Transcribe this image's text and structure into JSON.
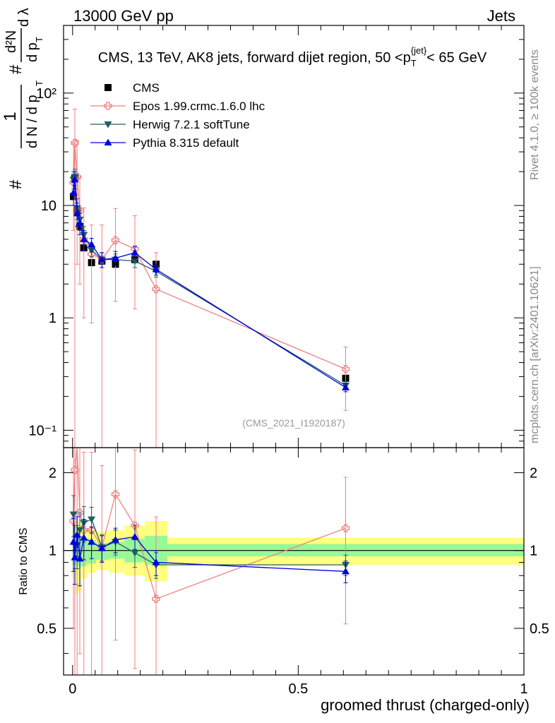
{
  "header": {
    "left": "13000 GeV pp",
    "right": "Jets"
  },
  "plot_title": "CMS, 13 TeV, AK8 jets, forward dijet region, 50 <p_T^{jet}< 65 GeV",
  "side_labels": {
    "rivet": "Rivet 4.1.0, ≥ 100k events",
    "mcplots": "mcplots.cern.ch [arXiv:2401.10621]"
  },
  "analysis_id": "(CMS_2021_I1920187)",
  "colors": {
    "cms": "#000000",
    "epos": "#f08080",
    "herwig": "#1f5f5f",
    "pythia": "#0000dd",
    "band_inner": "#98f898",
    "band_outer": "#ffff80"
  },
  "chart_data": [
    {
      "type": "scatter",
      "panel": "main",
      "title": "CMS, 13 TeV, AK8 jets, forward dijet region, 50 <p_T^{jet}< 65 GeV",
      "xlabel": "groomed thrust (charged-only)",
      "ylabel": "1/(dN/dp_T) d²N/(dp_T dλ)",
      "ylabel_parts": {
        "num_hash": "#",
        "one": "1",
        "den": "d N / d p",
        "sub": "T",
        "frac_num": "d²N",
        "frac_den": "d p",
        "frac_sub": "T",
        "lam": "d λ"
      },
      "xlim": [
        -0.02,
        1.0
      ],
      "ylim": [
        0.07,
        400
      ],
      "yscale": "log",
      "ytick_labels": [
        "10⁻¹",
        "1",
        "10",
        "10²"
      ],
      "ytick_values": [
        0.1,
        1,
        10,
        100
      ],
      "xtick_labels": [
        "0",
        "0.5",
        "1"
      ],
      "xtick_values": [
        0,
        0.5,
        1
      ],
      "legend": [
        "CMS",
        "Epos 1.99.crmc.1.6.0 lhc",
        "Herwig 7.2.1 softTune",
        "Pythia 8.315 default"
      ],
      "series": [
        {
          "name": "CMS",
          "marker": "square",
          "x": [
            0.002,
            0.005,
            0.01,
            0.016,
            0.025,
            0.042,
            0.065,
            0.095,
            0.138,
            0.185,
            0.605
          ],
          "y": [
            12,
            17.5,
            9,
            6.5,
            4.2,
            3.1,
            3.2,
            3.0,
            3.3,
            3.0,
            0.29
          ]
        },
        {
          "name": "Epos 1.99.crmc.1.6.0 lhc",
          "marker": "open-cross",
          "x": [
            0.002,
            0.005,
            0.01,
            0.016,
            0.025,
            0.042,
            0.065,
            0.095,
            0.138,
            0.185,
            0.605
          ],
          "y": [
            16,
            36,
            18,
            9,
            5.0,
            3.7,
            3.3,
            4.9,
            4.1,
            1.8,
            0.35
          ],
          "err_low": [
            10,
            36,
            15,
            7,
            4.0,
            2.8,
            3.3,
            3.5,
            2.9,
            1.8,
            0.2
          ],
          "err_high": [
            20,
            36,
            20,
            9,
            4.5,
            3.0,
            3.4,
            4.5,
            4.0,
            2.0,
            0.2
          ]
        },
        {
          "name": "Herwig 7.2.1 softTune",
          "marker": "triangle-down",
          "x": [
            0.002,
            0.005,
            0.01,
            0.016,
            0.025,
            0.042,
            0.065,
            0.095,
            0.138,
            0.185,
            0.605
          ],
          "y": [
            17,
            18,
            9.5,
            7.5,
            5.5,
            4.0,
            3.3,
            3.3,
            3.2,
            2.6,
            0.25
          ],
          "err_low": [
            3,
            3,
            2,
            1.5,
            1,
            0.5,
            0.5,
            0.4,
            0.4,
            0.3,
            0.02
          ],
          "err_high": [
            3,
            3,
            2,
            1.5,
            1,
            0.5,
            0.5,
            0.4,
            0.4,
            0.3,
            0.02
          ]
        },
        {
          "name": "Pythia 8.315 default",
          "marker": "triangle-up",
          "x": [
            0.002,
            0.005,
            0.01,
            0.016,
            0.025,
            0.042,
            0.065,
            0.095,
            0.138,
            0.185,
            0.605
          ],
          "y": [
            13,
            17,
            8.5,
            7,
            5.0,
            4.5,
            3.3,
            3.4,
            3.8,
            2.7,
            0.24
          ],
          "err_low": [
            3,
            3,
            2,
            1.5,
            1,
            0.6,
            0.5,
            0.5,
            0.5,
            0.3,
            0.02
          ],
          "err_high": [
            3,
            3,
            2,
            1.5,
            1,
            0.6,
            0.5,
            0.5,
            0.5,
            0.3,
            0.02
          ]
        }
      ]
    },
    {
      "type": "scatter",
      "panel": "ratio",
      "ylabel": "Ratio to CMS",
      "xlabel": "groomed thrust (charged-only)",
      "xlim": [
        -0.02,
        1.0
      ],
      "ylim": [
        0.33,
        2.5
      ],
      "yscale": "log",
      "ytick_labels": [
        "0.5",
        "1",
        "2"
      ],
      "ytick_values": [
        0.5,
        1,
        2
      ],
      "xtick_labels": [
        "0",
        "0.5",
        "1"
      ],
      "xtick_values": [
        0,
        0.5,
        1
      ],
      "reference": 1.0,
      "bands": {
        "edges": [
          0.0,
          0.004,
          0.007,
          0.013,
          0.02,
          0.032,
          0.052,
          0.08,
          0.115,
          0.16,
          0.21,
          1.0
        ],
        "inner_low": [
          0.88,
          0.9,
          0.88,
          0.86,
          0.87,
          0.89,
          0.92,
          0.93,
          0.9,
          0.88,
          0.95
        ],
        "inner_high": [
          1.12,
          1.1,
          1.12,
          1.12,
          1.12,
          1.1,
          1.07,
          1.08,
          1.11,
          1.14,
          1.06
        ],
        "outer_low": [
          0.78,
          0.72,
          0.68,
          0.7,
          0.78,
          0.82,
          0.84,
          0.82,
          0.8,
          0.76,
          0.88
        ],
        "outer_high": [
          1.25,
          1.3,
          1.32,
          1.28,
          1.22,
          1.2,
          1.18,
          1.2,
          1.25,
          1.3,
          1.12
        ]
      },
      "series": [
        {
          "name": "Epos 1.99.crmc.1.6.0 lhc",
          "x": [
            0.002,
            0.005,
            0.01,
            0.016,
            0.025,
            0.042,
            0.065,
            0.095,
            0.138,
            0.185,
            0.605
          ],
          "y": [
            1.3,
            2.05,
            2.6,
            1.4,
            1.2,
            1.2,
            1.03,
            1.65,
            1.25,
            0.65,
            1.22
          ],
          "err_low": [
            0.8,
            2.0,
            2.3,
            1.0,
            0.9,
            0.9,
            1.0,
            1.2,
            0.9,
            0.6,
            0.7
          ],
          "err_high": [
            1.5,
            2.0,
            2.3,
            1.3,
            1.2,
            1.2,
            1.1,
            1.3,
            1.2,
            0.7,
            0.7
          ]
        },
        {
          "name": "Herwig 7.2.1 softTune",
          "x": [
            0.002,
            0.005,
            0.01,
            0.016,
            0.025,
            0.042,
            0.065,
            0.095,
            0.138,
            0.185,
            0.605
          ],
          "y": [
            1.38,
            1.05,
            1.05,
            1.2,
            1.28,
            1.32,
            1.03,
            1.08,
            0.98,
            0.88,
            0.88
          ],
          "err_low": [
            0.25,
            0.2,
            0.2,
            0.2,
            0.2,
            0.15,
            0.12,
            0.12,
            0.12,
            0.1,
            0.08
          ],
          "err_high": [
            0.25,
            0.2,
            0.2,
            0.2,
            0.2,
            0.15,
            0.12,
            0.12,
            0.12,
            0.1,
            0.08
          ]
        },
        {
          "name": "Pythia 8.315 default",
          "x": [
            0.002,
            0.005,
            0.01,
            0.016,
            0.025,
            0.042,
            0.065,
            0.095,
            0.138,
            0.185,
            0.605
          ],
          "y": [
            1.08,
            0.94,
            1.15,
            0.93,
            1.12,
            1.08,
            1.02,
            1.1,
            1.13,
            0.9,
            0.83
          ],
          "err_low": [
            0.25,
            0.2,
            0.2,
            0.2,
            0.2,
            0.15,
            0.12,
            0.12,
            0.12,
            0.1,
            0.08
          ],
          "err_high": [
            0.25,
            0.2,
            0.2,
            0.2,
            0.2,
            0.15,
            0.12,
            0.12,
            0.12,
            0.1,
            0.08
          ]
        }
      ]
    }
  ]
}
